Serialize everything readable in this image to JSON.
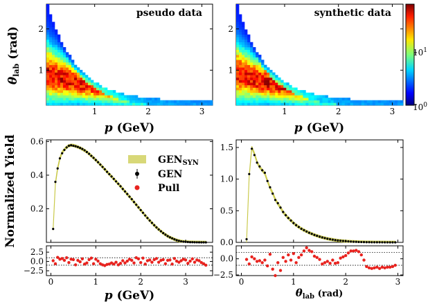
{
  "chart_data": [
    {
      "id": "pseudo",
      "type": "heatmap",
      "title": "pseudo data",
      "xlabel": "p (GeV)",
      "ylabel": "θlab (rad)",
      "xlim": [
        0.1,
        3.2
      ],
      "ylim": [
        0.15,
        2.6
      ],
      "xticks": [
        "1",
        "2",
        "3"
      ],
      "yticks": [
        "1",
        "2"
      ],
      "xtick_values": [
        1,
        2,
        3
      ],
      "ytick_values": [
        1,
        2
      ]
    },
    {
      "id": "synthetic",
      "type": "heatmap",
      "title": "synthetic data",
      "xlabel": "p (GeV)",
      "xlim": [
        0.1,
        3.2
      ],
      "ylim": [
        0.15,
        2.6
      ],
      "xticks": [
        "1",
        "2",
        "3"
      ],
      "yticks": [
        "1",
        "2"
      ],
      "xtick_values": [
        1,
        2,
        3
      ],
      "ytick_values": [
        1,
        2
      ],
      "colorbar": {
        "scale": "log",
        "range": [
          1,
          80
        ],
        "ticks": [
          "10⁰",
          "10¹"
        ],
        "tick_values": [
          1,
          10
        ]
      }
    },
    {
      "id": "p_dist",
      "type": "line",
      "ylabel": "Normalized Yield",
      "xlim": [
        -0.1,
        3.6
      ],
      "ylim": [
        0,
        0.61
      ],
      "yticks": [
        "0.2",
        "0.4",
        "0.6"
      ],
      "ytick_values": [
        0.2,
        0.4,
        0.6
      ],
      "legend_position": "right",
      "series": [
        {
          "name": "GEN_SYN",
          "color": "#c8c846"
        },
        {
          "name": "GEN",
          "color": "#000000"
        },
        {
          "name": "Pull",
          "color": "#e8231f"
        }
      ],
      "x": [
        0.05,
        0.1,
        0.15,
        0.2,
        0.25,
        0.3,
        0.35,
        0.4,
        0.45,
        0.5,
        0.55,
        0.6,
        0.65,
        0.7,
        0.75,
        0.8,
        0.85,
        0.9,
        0.95,
        1.0,
        1.05,
        1.1,
        1.15,
        1.2,
        1.25,
        1.3,
        1.35,
        1.4,
        1.45,
        1.5,
        1.55,
        1.6,
        1.65,
        1.7,
        1.75,
        1.8,
        1.85,
        1.9,
        1.95,
        2.0,
        2.05,
        2.1,
        2.15,
        2.2,
        2.25,
        2.3,
        2.35,
        2.4,
        2.45,
        2.5,
        2.55,
        2.6,
        2.65,
        2.7,
        2.75,
        2.8,
        2.85,
        2.9,
        2.95,
        3.0,
        3.05,
        3.1,
        3.15,
        3.2,
        3.25,
        3.3,
        3.35,
        3.4,
        3.45
      ],
      "gen": [
        0.08,
        0.36,
        0.44,
        0.5,
        0.53,
        0.55,
        0.565,
        0.575,
        0.578,
        0.575,
        0.572,
        0.568,
        0.562,
        0.556,
        0.548,
        0.538,
        0.527,
        0.515,
        0.503,
        0.49,
        0.477,
        0.463,
        0.449,
        0.435,
        0.42,
        0.406,
        0.392,
        0.378,
        0.363,
        0.349,
        0.334,
        0.318,
        0.303,
        0.288,
        0.272,
        0.257,
        0.24,
        0.224,
        0.208,
        0.192,
        0.176,
        0.16,
        0.145,
        0.13,
        0.116,
        0.102,
        0.089,
        0.077,
        0.066,
        0.055,
        0.046,
        0.037,
        0.03,
        0.024,
        0.018,
        0.013,
        0.009,
        0.006,
        0.004,
        0.003,
        0.002,
        0.001,
        0.001,
        0.0005,
        0.0003,
        0.0002,
        0.0001,
        0.0001,
        0.0
      ],
      "gensyn": [
        0.08,
        0.35,
        0.44,
        0.5,
        0.535,
        0.552,
        0.566,
        0.575,
        0.578,
        0.577,
        0.573,
        0.568,
        0.562,
        0.555,
        0.547,
        0.538,
        0.527,
        0.515,
        0.503,
        0.49,
        0.477,
        0.463,
        0.449,
        0.435,
        0.42,
        0.406,
        0.392,
        0.377,
        0.363,
        0.348,
        0.334,
        0.318,
        0.303,
        0.287,
        0.272,
        0.256,
        0.24,
        0.224,
        0.208,
        0.192,
        0.176,
        0.16,
        0.145,
        0.13,
        0.116,
        0.102,
        0.089,
        0.077,
        0.066,
        0.055,
        0.046,
        0.037,
        0.03,
        0.024,
        0.018,
        0.013,
        0.009,
        0.006,
        0.004,
        0.003,
        0.002,
        0.001,
        0.001,
        0.0005,
        0.0003,
        0.0002,
        0.0001,
        0.0001,
        0.0
      ],
      "pull": {
        "ylim": [
          -3.8,
          4.2
        ],
        "yticks": [
          "−2.5",
          "0.0",
          "2.5"
        ],
        "ytick_values": [
          -2.5,
          0,
          2.5
        ],
        "reflines": [
          -1,
          1
        ],
        "values": [
          0.2,
          -0.6,
          1.1,
          0.6,
          0.8,
          0.3,
          1.0,
          -0.3,
          0.6,
          0.5,
          -0.9,
          0.3,
          -0.1,
          0.7,
          -0.7,
          -0.4,
          0.5,
          0.9,
          -0.6,
          0.6,
          0.1,
          -0.6,
          -0.9,
          -1.1,
          -0.8,
          -0.7,
          -0.4,
          -0.7,
          -0.2,
          -0.9,
          -0.5,
          0.2,
          -0.4,
          0.1,
          0.6,
          0.3,
          -0.4,
          1.0,
          0.7,
          -0.3,
          0.9,
          -0.7,
          0.2,
          0.4,
          -0.2,
          0.5,
          0.8,
          -0.2,
          0.3,
          0.5,
          -0.6,
          0.3,
          0.4,
          -0.7,
          0.8,
          0.1,
          -0.2,
          0.2,
          0.6,
          0.4,
          -0.5,
          0.1,
          0.7,
          -0.2,
          0.4,
          0.2,
          -0.3,
          -0.6,
          -1.0
        ]
      },
      "xticks": [
        "0",
        "1",
        "2",
        "3"
      ],
      "xtick_values": [
        0,
        1,
        2,
        3
      ],
      "xlabel": "p (GeV)"
    },
    {
      "id": "theta_dist",
      "type": "line",
      "xlim": [
        -0.1,
        3.1
      ],
      "ylim": [
        0,
        1.62
      ],
      "yticks": [
        "0.0",
        "0.5",
        "1.0",
        "1.5"
      ],
      "ytick_values": [
        0,
        0.5,
        1.0,
        1.5
      ],
      "x": [
        0.1,
        0.15,
        0.2,
        0.25,
        0.3,
        0.35,
        0.4,
        0.45,
        0.5,
        0.55,
        0.6,
        0.65,
        0.7,
        0.75,
        0.8,
        0.85,
        0.9,
        0.95,
        1.0,
        1.05,
        1.1,
        1.15,
        1.2,
        1.25,
        1.3,
        1.35,
        1.4,
        1.45,
        1.5,
        1.55,
        1.6,
        1.65,
        1.7,
        1.75,
        1.8,
        1.85,
        1.9,
        1.95,
        2.0,
        2.05,
        2.1,
        2.15,
        2.2,
        2.25,
        2.3,
        2.35,
        2.4,
        2.45,
        2.5,
        2.55,
        2.6,
        2.65,
        2.7,
        2.75,
        2.8,
        2.85,
        2.9,
        2.95
      ],
      "gen": [
        0.05,
        1.08,
        1.48,
        1.38,
        1.26,
        1.2,
        1.14,
        1.1,
        0.97,
        0.87,
        0.77,
        0.67,
        0.62,
        0.55,
        0.48,
        0.43,
        0.385,
        0.345,
        0.305,
        0.272,
        0.243,
        0.215,
        0.193,
        0.172,
        0.152,
        0.135,
        0.118,
        0.104,
        0.09,
        0.078,
        0.068,
        0.058,
        0.05,
        0.043,
        0.036,
        0.03,
        0.026,
        0.022,
        0.018,
        0.015,
        0.012,
        0.01,
        0.008,
        0.006,
        0.005,
        0.004,
        0.003,
        0.0025,
        0.002,
        0.0015,
        0.0012,
        0.001,
        0.0008,
        0.0006,
        0.0004,
        0.0003,
        0.0002,
        0.0001
      ],
      "gensyn": [
        0.02,
        1.05,
        1.5,
        1.4,
        1.27,
        1.19,
        1.14,
        1.09,
        0.97,
        0.86,
        0.78,
        0.68,
        0.61,
        0.55,
        0.48,
        0.43,
        0.385,
        0.345,
        0.305,
        0.272,
        0.243,
        0.215,
        0.193,
        0.172,
        0.152,
        0.135,
        0.118,
        0.104,
        0.09,
        0.078,
        0.068,
        0.058,
        0.05,
        0.043,
        0.036,
        0.03,
        0.026,
        0.022,
        0.018,
        0.015,
        0.012,
        0.01,
        0.008,
        0.006,
        0.005,
        0.004,
        0.003,
        0.0025,
        0.002,
        0.0015,
        0.0012,
        0.001,
        0.0008,
        0.0006,
        0.0004,
        0.0003,
        0.0002,
        0.0001
      ],
      "pull": {
        "ylim": [
          -2.6,
          2.0
        ],
        "yticks": [
          "−2.5",
          "0.0"
        ],
        "ytick_values": [
          -2.5,
          0
        ],
        "reflines": [
          -1,
          1
        ],
        "values": [
          -0.1,
          -0.8,
          0.3,
          0.0,
          -0.4,
          -0.3,
          -0.6,
          -0.2,
          -1.1,
          0.7,
          -1.6,
          -2.6,
          -0.6,
          -1.8,
          0.2,
          -0.4,
          0.6,
          -0.2,
          0.8,
          -0.6,
          0.2,
          0.6,
          1.2,
          1.7,
          1.3,
          1.1,
          0.4,
          0.2,
          -0.1,
          -0.8,
          -0.6,
          -0.4,
          -0.7,
          -0.2,
          -0.7,
          -0.6,
          0.1,
          0.3,
          0.5,
          0.9,
          1.2,
          1.2,
          1.3,
          1.1,
          0.6,
          -0.2,
          -1.2,
          -1.4,
          -1.5,
          -1.4,
          -1.3,
          -1.5,
          -1.3,
          -1.4,
          -1.3,
          -1.3,
          -1.2,
          -1.0
        ]
      },
      "xticks": [
        "0",
        "1",
        "2",
        "3"
      ],
      "xtick_values": [
        0,
        1,
        2,
        3
      ],
      "xlabel": "θlab (rad)"
    }
  ],
  "labels": {
    "theta_main": "θ",
    "theta_sub": "lab",
    "rad_unit": "(rad)",
    "p_main": "p",
    "gev_unit": "(GeV)",
    "normalized_yield": "Normalized Yield",
    "legend_gensyn_main": "GEN",
    "legend_gensyn_sub": "SYN",
    "legend_gen": "GEN",
    "legend_pull": "Pull",
    "pseudo_title": "pseudo data",
    "synthetic_title": "synthetic data",
    "cb_tick_1": "10",
    "cb_tick_1_exp": "0",
    "cb_tick_10": "10",
    "cb_tick_10_exp": "1"
  }
}
